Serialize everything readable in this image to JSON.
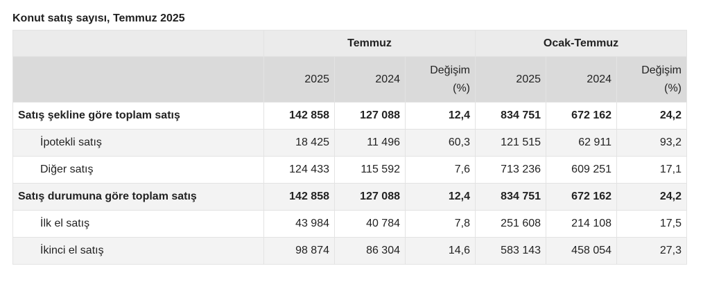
{
  "title": "Konut satış sayısı, Temmuz 2025",
  "header": {
    "group1": "Temmuz",
    "group2": "Ocak-Temmuz",
    "columns": [
      {
        "line1": "2025",
        "line2": ""
      },
      {
        "line1": "2024",
        "line2": ""
      },
      {
        "line1": "Değişim",
        "line2": "(%)"
      },
      {
        "line1": "2025",
        "line2": ""
      },
      {
        "line1": "2024",
        "line2": ""
      },
      {
        "line1": "Değişim",
        "line2": "(%)"
      }
    ]
  },
  "rows": [
    {
      "label": "Satış şekline göre toplam satış",
      "values": [
        "142 858",
        "127 088",
        "12,4",
        "834 751",
        "672 162",
        "24,2"
      ]
    },
    {
      "label": "İpotekli satış",
      "values": [
        "18 425",
        "11 496",
        "60,3",
        "121 515",
        "62 911",
        "93,2"
      ]
    },
    {
      "label": "Diğer satış",
      "values": [
        "124 433",
        "115 592",
        "7,6",
        "713 236",
        "609 251",
        "17,1"
      ]
    },
    {
      "label": "Satış durumuna göre toplam satış",
      "values": [
        "142 858",
        "127 088",
        "12,4",
        "834 751",
        "672 162",
        "24,2"
      ]
    },
    {
      "label": "İlk el satış",
      "values": [
        "43 984",
        "40 784",
        "7,8",
        "251 608",
        "214 108",
        "17,5"
      ]
    },
    {
      "label": "İkinci el satış",
      "values": [
        "98 874",
        "86 304",
        "14,6",
        "583 143",
        "458 054",
        "27,3"
      ]
    }
  ]
}
